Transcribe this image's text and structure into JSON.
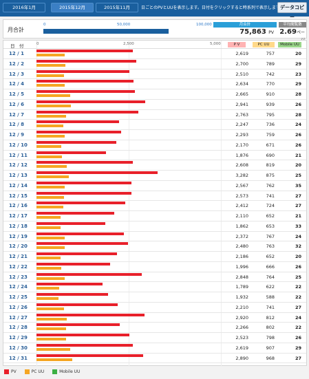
{
  "tabs": [
    {
      "label": "2016年1月",
      "active": false
    },
    {
      "label": "2015年12月",
      "active": true
    },
    {
      "label": "2015年11月",
      "active": false
    }
  ],
  "header_note": "日ごとのPVとUUを表示します。日付をクリックすると時系列で表示します。",
  "copy_button_label": "データコピー",
  "summary": {
    "label": "月合計",
    "ticks": [
      "0",
      "50,000",
      "100,000"
    ],
    "total_head": "月合計",
    "total_value": "75,863",
    "total_unit": "PV",
    "avg_head": "平均閲覧数",
    "avg_value": "2.69",
    "avg_unit": "ページ",
    "bar_fraction": 0.75863
  },
  "table": {
    "date_header": "日　付",
    "scale_ticks": [
      "0",
      "2,500",
      "5,000"
    ],
    "pv_header": "P V",
    "pc_header": "PC UU",
    "mobile_header": "Mobile UU"
  },
  "chart_data": {
    "type": "bar",
    "x_max": 5000,
    "categories": [
      "12 / 1",
      "12 / 2",
      "12 / 3",
      "12 / 4",
      "12 / 5",
      "12 / 6",
      "12 / 7",
      "12 / 8",
      "12 / 9",
      "12 / 10",
      "12 / 11",
      "12 / 12",
      "12 / 13",
      "12 / 14",
      "12 / 15",
      "12 / 16",
      "12 / 17",
      "12 / 18",
      "12 / 19",
      "12 / 20",
      "12 / 21",
      "12 / 22",
      "12 / 23",
      "12 / 24",
      "12 / 25",
      "12 / 26",
      "12 / 27",
      "12 / 28",
      "12 / 29",
      "12 / 30",
      "12 / 31"
    ],
    "series": [
      {
        "name": "PV",
        "color": "#e8202a",
        "values": [
          2619,
          2700,
          2510,
          2634,
          2665,
          2941,
          2763,
          2247,
          2293,
          2170,
          1876,
          2608,
          3282,
          2567,
          2573,
          2412,
          2110,
          1862,
          2372,
          2480,
          2186,
          1996,
          2848,
          1789,
          1932,
          2210,
          2920,
          2266,
          2523,
          2619,
          2890
        ]
      },
      {
        "name": "PC UU",
        "color": "#f5a623",
        "values": [
          757,
          789,
          742,
          770,
          910,
          939,
          795,
          736,
          759,
          671,
          690,
          819,
          875,
          762,
          741,
          724,
          652,
          653,
          767,
          763,
          652,
          666,
          764,
          622,
          588,
          741,
          812,
          802,
          798,
          907,
          968
        ]
      },
      {
        "name": "Mobile UU",
        "color": "#3cb043",
        "values": [
          20,
          29,
          23,
          29,
          28,
          26,
          28,
          24,
          26,
          26,
          21,
          20,
          25,
          35,
          27,
          27,
          21,
          33,
          24,
          32,
          20,
          26,
          25,
          22,
          22,
          27,
          24,
          22,
          26,
          29,
          27
        ]
      }
    ]
  },
  "row_values": [
    {
      "date": "12 / 1",
      "pv": "2,619",
      "pc": "757",
      "mob": "20"
    },
    {
      "date": "12 / 2",
      "pv": "2,700",
      "pc": "789",
      "mob": "29"
    },
    {
      "date": "12 / 3",
      "pv": "2,510",
      "pc": "742",
      "mob": "23"
    },
    {
      "date": "12 / 4",
      "pv": "2,634",
      "pc": "770",
      "mob": "29"
    },
    {
      "date": "12 / 5",
      "pv": "2,665",
      "pc": "910",
      "mob": "28"
    },
    {
      "date": "12 / 6",
      "pv": "2,941",
      "pc": "939",
      "mob": "26"
    },
    {
      "date": "12 / 7",
      "pv": "2,763",
      "pc": "795",
      "mob": "28"
    },
    {
      "date": "12 / 8",
      "pv": "2,247",
      "pc": "736",
      "mob": "24"
    },
    {
      "date": "12 / 9",
      "pv": "2,293",
      "pc": "759",
      "mob": "26"
    },
    {
      "date": "12 / 10",
      "pv": "2,170",
      "pc": "671",
      "mob": "26"
    },
    {
      "date": "12 / 11",
      "pv": "1,876",
      "pc": "690",
      "mob": "21"
    },
    {
      "date": "12 / 12",
      "pv": "2,608",
      "pc": "819",
      "mob": "20"
    },
    {
      "date": "12 / 13",
      "pv": "3,282",
      "pc": "875",
      "mob": "25"
    },
    {
      "date": "12 / 14",
      "pv": "2,567",
      "pc": "762",
      "mob": "35"
    },
    {
      "date": "12 / 15",
      "pv": "2,573",
      "pc": "741",
      "mob": "27"
    },
    {
      "date": "12 / 16",
      "pv": "2,412",
      "pc": "724",
      "mob": "27"
    },
    {
      "date": "12 / 17",
      "pv": "2,110",
      "pc": "652",
      "mob": "21"
    },
    {
      "date": "12 / 18",
      "pv": "1,862",
      "pc": "653",
      "mob": "33"
    },
    {
      "date": "12 / 19",
      "pv": "2,372",
      "pc": "767",
      "mob": "24"
    },
    {
      "date": "12 / 20",
      "pv": "2,480",
      "pc": "763",
      "mob": "32"
    },
    {
      "date": "12 / 21",
      "pv": "2,186",
      "pc": "652",
      "mob": "20"
    },
    {
      "date": "12 / 22",
      "pv": "1,996",
      "pc": "666",
      "mob": "26"
    },
    {
      "date": "12 / 23",
      "pv": "2,848",
      "pc": "764",
      "mob": "25"
    },
    {
      "date": "12 / 24",
      "pv": "1,789",
      "pc": "622",
      "mob": "22"
    },
    {
      "date": "12 / 25",
      "pv": "1,932",
      "pc": "588",
      "mob": "22"
    },
    {
      "date": "12 / 26",
      "pv": "2,210",
      "pc": "741",
      "mob": "27"
    },
    {
      "date": "12 / 27",
      "pv": "2,920",
      "pc": "812",
      "mob": "24"
    },
    {
      "date": "12 / 28",
      "pv": "2,266",
      "pc": "802",
      "mob": "22"
    },
    {
      "date": "12 / 29",
      "pv": "2,523",
      "pc": "798",
      "mob": "26"
    },
    {
      "date": "12 / 30",
      "pv": "2,619",
      "pc": "907",
      "mob": "29"
    },
    {
      "date": "12 / 31",
      "pv": "2,890",
      "pc": "968",
      "mob": "27"
    }
  ],
  "legend": [
    {
      "label": "PV",
      "color": "#e8202a"
    },
    {
      "label": "PC UU",
      "color": "#f5a623"
    },
    {
      "label": "Mobile UU",
      "color": "#3cb043"
    }
  ]
}
